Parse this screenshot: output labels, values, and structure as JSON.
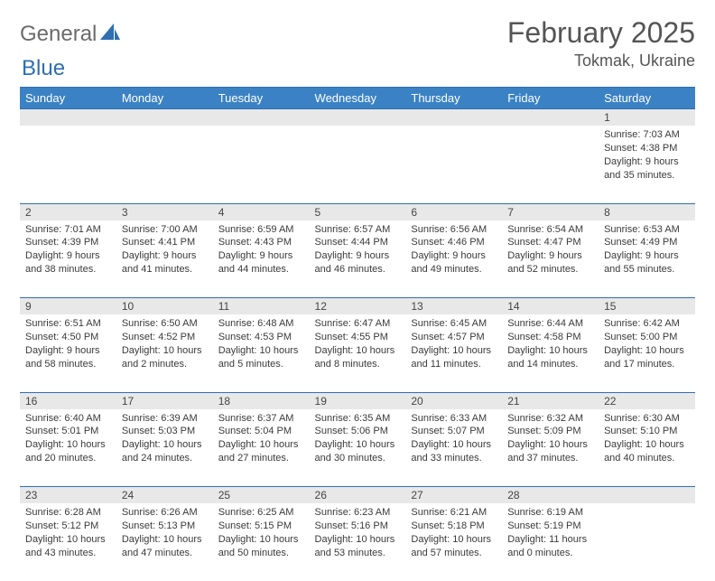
{
  "brand": {
    "part1": "General",
    "part2": "Blue"
  },
  "title": "February 2025",
  "location": "Tokmak, Ukraine",
  "colors": {
    "header_bg": "#3b82c4",
    "header_text": "#ffffff",
    "daynum_bg": "#e8e8e8",
    "rule": "#2f6fb0",
    "body_text": "#3a3a3a",
    "brand_gray": "#6b6b6b",
    "brand_blue": "#2f6fb0"
  },
  "weekdays": [
    "Sunday",
    "Monday",
    "Tuesday",
    "Wednesday",
    "Thursday",
    "Friday",
    "Saturday"
  ],
  "weeks": [
    [
      null,
      null,
      null,
      null,
      null,
      null,
      {
        "n": "1",
        "sr": "Sunrise: 7:03 AM",
        "ss": "Sunset: 4:38 PM",
        "dl": "Daylight: 9 hours and 35 minutes."
      }
    ],
    [
      {
        "n": "2",
        "sr": "Sunrise: 7:01 AM",
        "ss": "Sunset: 4:39 PM",
        "dl": "Daylight: 9 hours and 38 minutes."
      },
      {
        "n": "3",
        "sr": "Sunrise: 7:00 AM",
        "ss": "Sunset: 4:41 PM",
        "dl": "Daylight: 9 hours and 41 minutes."
      },
      {
        "n": "4",
        "sr": "Sunrise: 6:59 AM",
        "ss": "Sunset: 4:43 PM",
        "dl": "Daylight: 9 hours and 44 minutes."
      },
      {
        "n": "5",
        "sr": "Sunrise: 6:57 AM",
        "ss": "Sunset: 4:44 PM",
        "dl": "Daylight: 9 hours and 46 minutes."
      },
      {
        "n": "6",
        "sr": "Sunrise: 6:56 AM",
        "ss": "Sunset: 4:46 PM",
        "dl": "Daylight: 9 hours and 49 minutes."
      },
      {
        "n": "7",
        "sr": "Sunrise: 6:54 AM",
        "ss": "Sunset: 4:47 PM",
        "dl": "Daylight: 9 hours and 52 minutes."
      },
      {
        "n": "8",
        "sr": "Sunrise: 6:53 AM",
        "ss": "Sunset: 4:49 PM",
        "dl": "Daylight: 9 hours and 55 minutes."
      }
    ],
    [
      {
        "n": "9",
        "sr": "Sunrise: 6:51 AM",
        "ss": "Sunset: 4:50 PM",
        "dl": "Daylight: 9 hours and 58 minutes."
      },
      {
        "n": "10",
        "sr": "Sunrise: 6:50 AM",
        "ss": "Sunset: 4:52 PM",
        "dl": "Daylight: 10 hours and 2 minutes."
      },
      {
        "n": "11",
        "sr": "Sunrise: 6:48 AM",
        "ss": "Sunset: 4:53 PM",
        "dl": "Daylight: 10 hours and 5 minutes."
      },
      {
        "n": "12",
        "sr": "Sunrise: 6:47 AM",
        "ss": "Sunset: 4:55 PM",
        "dl": "Daylight: 10 hours and 8 minutes."
      },
      {
        "n": "13",
        "sr": "Sunrise: 6:45 AM",
        "ss": "Sunset: 4:57 PM",
        "dl": "Daylight: 10 hours and 11 minutes."
      },
      {
        "n": "14",
        "sr": "Sunrise: 6:44 AM",
        "ss": "Sunset: 4:58 PM",
        "dl": "Daylight: 10 hours and 14 minutes."
      },
      {
        "n": "15",
        "sr": "Sunrise: 6:42 AM",
        "ss": "Sunset: 5:00 PM",
        "dl": "Daylight: 10 hours and 17 minutes."
      }
    ],
    [
      {
        "n": "16",
        "sr": "Sunrise: 6:40 AM",
        "ss": "Sunset: 5:01 PM",
        "dl": "Daylight: 10 hours and 20 minutes."
      },
      {
        "n": "17",
        "sr": "Sunrise: 6:39 AM",
        "ss": "Sunset: 5:03 PM",
        "dl": "Daylight: 10 hours and 24 minutes."
      },
      {
        "n": "18",
        "sr": "Sunrise: 6:37 AM",
        "ss": "Sunset: 5:04 PM",
        "dl": "Daylight: 10 hours and 27 minutes."
      },
      {
        "n": "19",
        "sr": "Sunrise: 6:35 AM",
        "ss": "Sunset: 5:06 PM",
        "dl": "Daylight: 10 hours and 30 minutes."
      },
      {
        "n": "20",
        "sr": "Sunrise: 6:33 AM",
        "ss": "Sunset: 5:07 PM",
        "dl": "Daylight: 10 hours and 33 minutes."
      },
      {
        "n": "21",
        "sr": "Sunrise: 6:32 AM",
        "ss": "Sunset: 5:09 PM",
        "dl": "Daylight: 10 hours and 37 minutes."
      },
      {
        "n": "22",
        "sr": "Sunrise: 6:30 AM",
        "ss": "Sunset: 5:10 PM",
        "dl": "Daylight: 10 hours and 40 minutes."
      }
    ],
    [
      {
        "n": "23",
        "sr": "Sunrise: 6:28 AM",
        "ss": "Sunset: 5:12 PM",
        "dl": "Daylight: 10 hours and 43 minutes."
      },
      {
        "n": "24",
        "sr": "Sunrise: 6:26 AM",
        "ss": "Sunset: 5:13 PM",
        "dl": "Daylight: 10 hours and 47 minutes."
      },
      {
        "n": "25",
        "sr": "Sunrise: 6:25 AM",
        "ss": "Sunset: 5:15 PM",
        "dl": "Daylight: 10 hours and 50 minutes."
      },
      {
        "n": "26",
        "sr": "Sunrise: 6:23 AM",
        "ss": "Sunset: 5:16 PM",
        "dl": "Daylight: 10 hours and 53 minutes."
      },
      {
        "n": "27",
        "sr": "Sunrise: 6:21 AM",
        "ss": "Sunset: 5:18 PM",
        "dl": "Daylight: 10 hours and 57 minutes."
      },
      {
        "n": "28",
        "sr": "Sunrise: 6:19 AM",
        "ss": "Sunset: 5:19 PM",
        "dl": "Daylight: 11 hours and 0 minutes."
      },
      null
    ]
  ]
}
